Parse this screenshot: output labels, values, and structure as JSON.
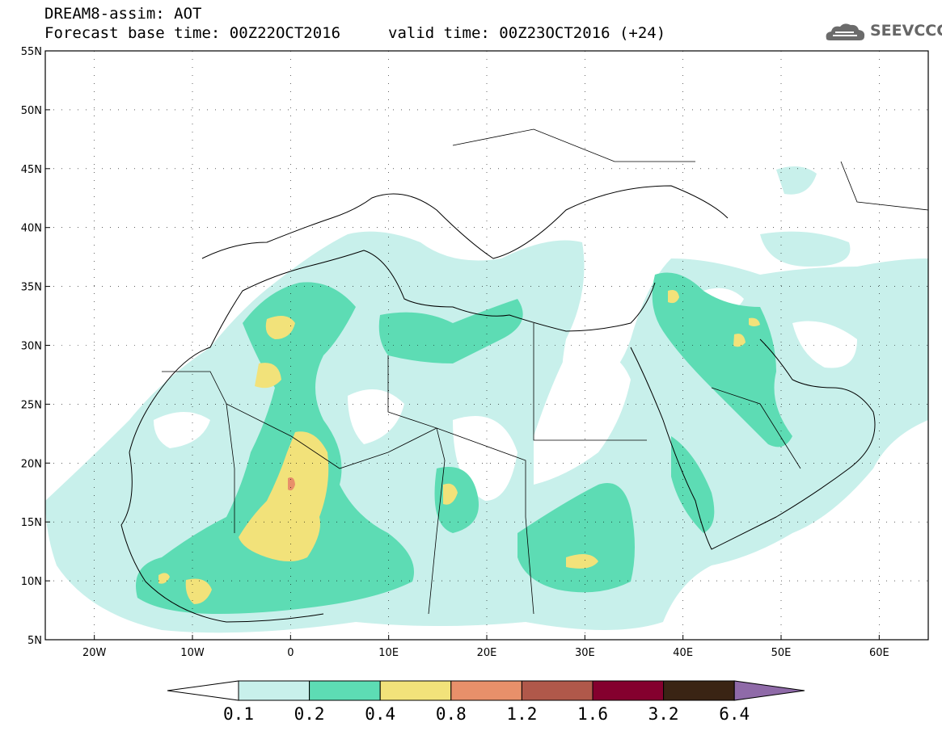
{
  "header": {
    "title_line1": "DREAM8-assim: AOT",
    "title_line2": "Forecast base time: 00Z22OCT2016",
    "valid_time": "valid time: 00Z23OCT2016 (+24)",
    "logo_text": "SEEVCCC",
    "logo_icon": "cloud-logo-icon"
  },
  "map": {
    "lat_range": [
      5,
      55
    ],
    "lon_range": [
      -25,
      65
    ],
    "lat_labels": [
      "55N",
      "50N",
      "45N",
      "40N",
      "35N",
      "30N",
      "25N",
      "20N",
      "15N",
      "10N",
      "5N"
    ],
    "lon_labels": [
      "20W",
      "10W",
      "0",
      "10E",
      "20E",
      "30E",
      "40E",
      "50E",
      "60E"
    ],
    "lat_values": [
      55,
      50,
      45,
      40,
      35,
      30,
      25,
      20,
      15,
      10,
      5
    ],
    "lon_values": [
      -20,
      -10,
      0,
      10,
      20,
      30,
      40,
      50,
      60
    ]
  },
  "colorbar": {
    "levels": [
      "0.1",
      "0.2",
      "0.4",
      "0.8",
      "1.2",
      "1.6",
      "3.2",
      "6.4"
    ],
    "colors": [
      "#c8f0eb",
      "#5ddcb4",
      "#f2e27a",
      "#e8906a",
      "#b0584a",
      "#84002e",
      "#3a2414"
    ],
    "below_color": "#ffffff",
    "above_color": "#8f6aa8"
  }
}
